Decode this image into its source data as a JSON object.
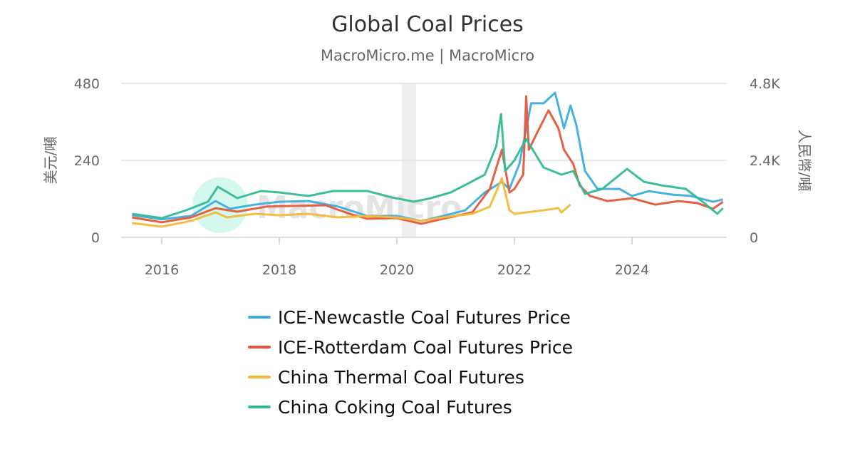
{
  "chart_data": {
    "type": "line",
    "title": "Global Coal Prices",
    "subtitle": "MacroMicro.me | MacroMicro",
    "watermark": "MacroMicro",
    "ylabel_left": "美元/噸",
    "ylabel_right": "人民幣/噸",
    "ylim_left": [
      0,
      480
    ],
    "ylim_right": [
      0,
      4800
    ],
    "yticks_left": [
      "0",
      "240",
      "480"
    ],
    "yticks_right": [
      "0",
      "2.4K",
      "4.8K"
    ],
    "xticks": [
      "2016",
      "2018",
      "2020",
      "2022",
      "2024"
    ],
    "xlim": [
      "2015-06-01",
      "2025-08-01"
    ],
    "grid": true,
    "legend_position": "bottom",
    "shaded_periods": [
      [
        "2020-02-01",
        "2020-04-30"
      ]
    ],
    "series": [
      {
        "name": "ICE-Newcastle Coal Futures Price",
        "axis": "left",
        "color": "#3daee0",
        "x": [
          "2015-07-01",
          "2016-01-01",
          "2016-07-01",
          "2016-12-01",
          "2017-03-01",
          "2017-08-01",
          "2018-01-01",
          "2018-07-01",
          "2019-01-01",
          "2019-07-01",
          "2020-01-01",
          "2020-06-01",
          "2020-10-15",
          "2021-03-01",
          "2021-07-01",
          "2021-10-15",
          "2021-12-01",
          "2022-02-01",
          "2022-04-15",
          "2022-07-01",
          "2022-09-10",
          "2022-11-05",
          "2022-12-15",
          "2023-01-20",
          "2023-03-15",
          "2023-06-01",
          "2023-10-15",
          "2024-01-01",
          "2024-04-15",
          "2024-09-10",
          "2025-01-01",
          "2025-05-20",
          "2025-07-20"
        ],
        "values": [
          69,
          56,
          67,
          113,
          89,
          102,
          111,
          113,
          96,
          67,
          67,
          51,
          67,
          84,
          140,
          173,
          151,
          229,
          418,
          418,
          451,
          340,
          411,
          351,
          207,
          151,
          151,
          129,
          144,
          133,
          129,
          111,
          118
        ]
      },
      {
        "name": "ICE-Rotterdam Coal Futures Price",
        "axis": "left",
        "color": "#e5573a",
        "x": [
          "2015-07-01",
          "2016-01-01",
          "2016-07-01",
          "2016-12-01",
          "2017-04-15",
          "2017-10-15",
          "2018-04-15",
          "2018-10-15",
          "2019-03-15",
          "2019-07-01",
          "2020-01-01",
          "2020-06-01",
          "2020-10-15",
          "2021-04-15",
          "2021-08-01",
          "2021-10-15",
          "2021-12-01",
          "2022-01-01",
          "2022-02-25",
          "2022-03-15",
          "2022-04-01",
          "2022-05-25",
          "2022-08-01",
          "2022-10-01",
          "2022-11-05",
          "2023-01-01",
          "2023-02-10",
          "2023-04-15",
          "2023-08-01",
          "2024-01-01",
          "2024-05-25",
          "2024-10-15",
          "2025-02-10",
          "2025-05-20",
          "2025-07-20"
        ],
        "values": [
          62,
          47,
          62,
          91,
          80,
          96,
          98,
          100,
          73,
          58,
          60,
          42,
          58,
          78,
          151,
          273,
          140,
          151,
          196,
          440,
          273,
          329,
          396,
          340,
          273,
          229,
          162,
          129,
          113,
          122,
          102,
          113,
          107,
          89,
          111
        ]
      },
      {
        "name": "China Thermal Coal Futures",
        "axis": "right",
        "color": "#f4b93a",
        "x": [
          "2015-07-01",
          "2016-01-01",
          "2016-07-01",
          "2016-12-01",
          "2017-02-10",
          "2017-08-01",
          "2018-01-01",
          "2018-07-01",
          "2019-01-01",
          "2019-07-01",
          "2020-01-01",
          "2020-06-01",
          "2020-10-15",
          "2021-04-15",
          "2021-08-01",
          "2021-10-15",
          "2021-12-01",
          "2022-01-01",
          "2022-07-01",
          "2022-10-01",
          "2022-10-20",
          "2022-12-15"
        ],
        "values": [
          444,
          333,
          511,
          778,
          622,
          733,
          689,
          733,
          622,
          667,
          622,
          511,
          622,
          733,
          956,
          1844,
          844,
          733,
          844,
          911,
          778,
          1022
        ]
      },
      {
        "name": "China Coking Coal Futures",
        "axis": "right",
        "color": "#33ba96",
        "x": [
          "2015-07-01",
          "2016-01-01",
          "2016-06-01",
          "2016-10-15",
          "2016-12-15",
          "2017-04-15",
          "2017-09-10",
          "2018-01-01",
          "2018-07-01",
          "2018-12-01",
          "2019-07-01",
          "2019-12-01",
          "2020-04-15",
          "2020-08-01",
          "2020-12-01",
          "2021-03-15",
          "2021-07-01",
          "2021-09-10",
          "2021-10-10",
          "2021-11-05",
          "2022-01-01",
          "2022-03-15",
          "2022-07-01",
          "2022-10-20",
          "2023-01-01",
          "2023-03-15",
          "2023-07-01",
          "2023-12-01",
          "2024-03-15",
          "2024-07-01",
          "2024-12-01",
          "2025-03-15",
          "2025-06-15",
          "2025-07-20"
        ],
        "values": [
          733,
          600,
          844,
          1111,
          1578,
          1222,
          1444,
          1400,
          1289,
          1444,
          1444,
          1244,
          1111,
          1222,
          1400,
          1667,
          1956,
          2844,
          3844,
          2067,
          2400,
          3067,
          2178,
          1956,
          2067,
          1356,
          1511,
          2133,
          1733,
          1622,
          1511,
          1111,
          733,
          911
        ]
      }
    ]
  }
}
